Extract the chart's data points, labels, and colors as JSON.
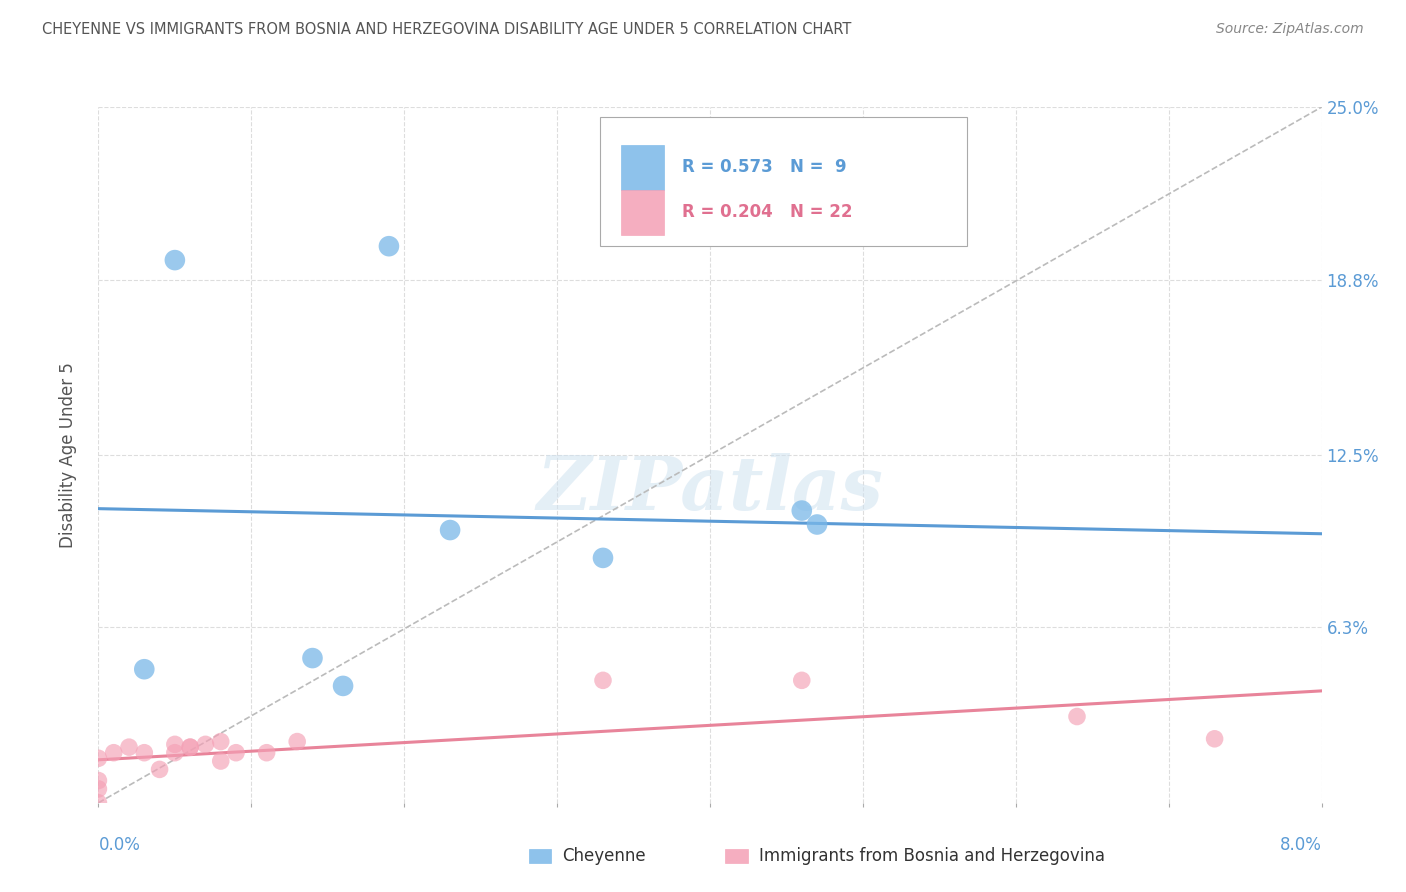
{
  "title": "CHEYENNE VS IMMIGRANTS FROM BOSNIA AND HERZEGOVINA DISABILITY AGE UNDER 5 CORRELATION CHART",
  "source": "Source: ZipAtlas.com",
  "ylabel": "Disability Age Under 5",
  "xlim": [
    0.0,
    0.08
  ],
  "ylim": [
    0.0,
    0.25
  ],
  "ytick_labels": [
    "25.0%",
    "18.8%",
    "12.5%",
    "6.3%"
  ],
  "ytick_values": [
    0.25,
    0.188,
    0.125,
    0.063
  ],
  "cheyenne_color": "#7ab8e8",
  "bosnia_color": "#f4a0b5",
  "cheyenne_line_color": "#5b9bd5",
  "bosnia_line_color": "#e8849a",
  "cheyenne_R": 0.573,
  "cheyenne_N": 9,
  "bosnia_R": 0.204,
  "bosnia_N": 22,
  "legend_label_cheyenne": "Cheyenne",
  "legend_label_bosnia": "Immigrants from Bosnia and Herzegovina",
  "watermark": "ZIPatlas",
  "cheyenne_points_x": [
    0.003,
    0.005,
    0.016,
    0.019,
    0.023,
    0.033,
    0.046,
    0.047,
    0.014
  ],
  "cheyenne_points_y": [
    0.048,
    0.195,
    0.042,
    0.2,
    0.098,
    0.088,
    0.105,
    0.1,
    0.052
  ],
  "bosnia_points_x": [
    0.0,
    0.0,
    0.0,
    0.0,
    0.001,
    0.002,
    0.003,
    0.004,
    0.005,
    0.005,
    0.006,
    0.006,
    0.007,
    0.008,
    0.008,
    0.009,
    0.011,
    0.013,
    0.033,
    0.046,
    0.064,
    0.073
  ],
  "bosnia_points_y": [
    0.0,
    0.005,
    0.008,
    0.016,
    0.018,
    0.02,
    0.018,
    0.012,
    0.021,
    0.018,
    0.02,
    0.02,
    0.021,
    0.015,
    0.022,
    0.018,
    0.018,
    0.022,
    0.044,
    0.044,
    0.031,
    0.023
  ],
  "background_color": "#ffffff",
  "grid_color": "#dddddd"
}
